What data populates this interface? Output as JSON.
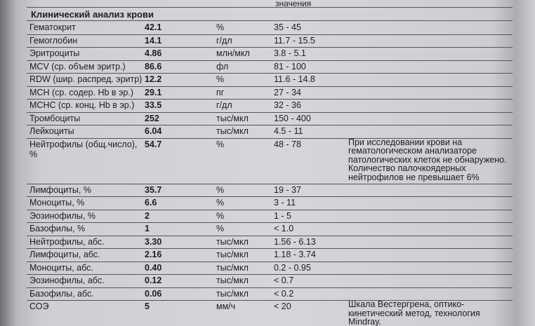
{
  "header": {
    "column_caption": "значения",
    "title": "Клинический анализ крови"
  },
  "table": {
    "rows": [
      {
        "name": "Гематокрит",
        "value": "42.1",
        "unit": "%",
        "reference": "35 - 45"
      },
      {
        "name": "Гемоглобин",
        "value": "14.1",
        "unit": "г/дл",
        "reference": "11.7 - 15.5"
      },
      {
        "name": "Эритроциты",
        "value": "4.86",
        "unit": "млн/мкл",
        "reference": "3.8 - 5.1"
      },
      {
        "name": "MCV (ср. объем эритр.)",
        "value": "86.6",
        "unit": "фл",
        "reference": "81 - 100"
      },
      {
        "name": "RDW (шир. распред. эритр)",
        "value": "12.2",
        "unit": "%",
        "reference": "11.6 - 14.8"
      },
      {
        "name": "MCH (ср. содер. Hb в эр.)",
        "value": "29.1",
        "unit": "пг",
        "reference": "27 - 34"
      },
      {
        "name": "MCHC (ср. конц. Hb в эр.)",
        "value": "33.5",
        "unit": "г/дл",
        "reference": "32 - 36"
      },
      {
        "name": "Тромбоциты",
        "value": "252",
        "unit": "тыс/мкл",
        "reference": "150 - 400"
      },
      {
        "name": "Лейкоциты",
        "value": "6.04",
        "unit": "тыс/мкл",
        "reference": "4.5 - 11"
      },
      {
        "name": "Нейтрофилы (общ.число), %",
        "value": "54.7",
        "unit": "%",
        "reference": "48 - 78",
        "note": [
          "При исследовании крови на",
          "гематологическом анализаторе",
          "патологических клеток не обнаружено.",
          "Количество палочкоядерных",
          "нейтрофилов не превышает 6%"
        ]
      },
      {
        "name": "Лимфоциты, %",
        "value": "35.7",
        "unit": "%",
        "reference": "19 - 37"
      },
      {
        "name": "Моноциты, %",
        "value": "6.6",
        "unit": "%",
        "reference": "3 - 11"
      },
      {
        "name": "Эозинофилы, %",
        "value": "2",
        "unit": "%",
        "reference": "1 - 5"
      },
      {
        "name": "Базофилы, %",
        "value": "1",
        "unit": "%",
        "reference": "< 1.0"
      },
      {
        "name": "Нейтрофилы, абс.",
        "value": "3.30",
        "unit": "тыс/мкл",
        "reference": "1.56 - 6.13"
      },
      {
        "name": "Лимфоциты, абс.",
        "value": "2.16",
        "unit": "тыс/мкл",
        "reference": "1.18 - 3.74"
      },
      {
        "name": "Моноциты, абс.",
        "value": "0.40",
        "unit": "тыс/мкл",
        "reference": "0.2 - 0.95"
      },
      {
        "name": "Эозинофилы, абс.",
        "value": "0.12",
        "unit": "тыс/мкл",
        "reference": "< 0.7"
      },
      {
        "name": "Базофилы, абс.",
        "value": "0.06",
        "unit": "тыс/мкл",
        "reference": "< 0.2"
      },
      {
        "name": "СОЭ",
        "value": "5",
        "unit": "мм/ч",
        "reference": "< 20",
        "note": [
          "Шкала Вестергрена, оптико-",
          "кинетический метод, технология",
          "Mindray."
        ]
      }
    ]
  }
}
